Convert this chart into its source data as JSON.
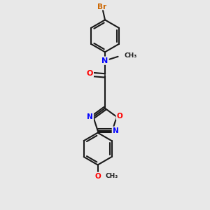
{
  "background_color": "#e8e8e8",
  "bond_color": "#1a1a1a",
  "nitrogen_color": "#0000ff",
  "oxygen_color": "#ff0000",
  "bromine_color": "#cc6600",
  "figsize": [
    3.0,
    3.0
  ],
  "dpi": 100,
  "xlim": [
    0,
    10
  ],
  "ylim": [
    0,
    10
  ]
}
